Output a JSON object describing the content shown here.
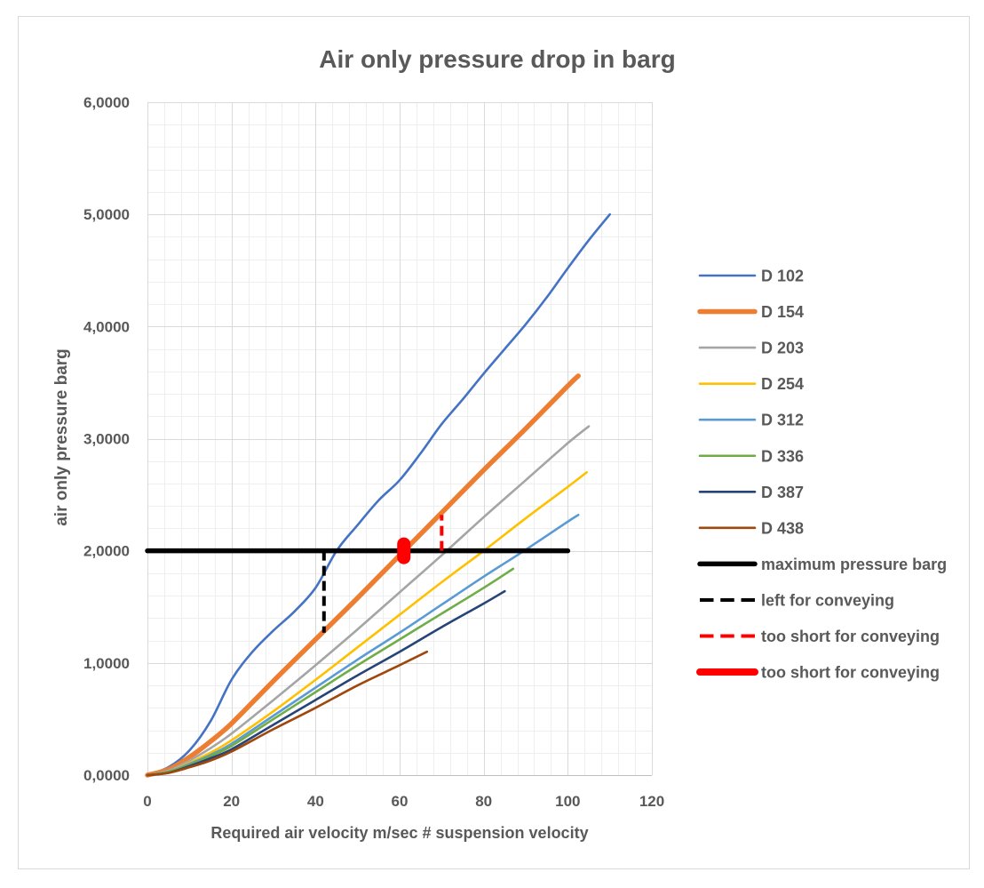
{
  "chart_data": {
    "type": "line",
    "title": "Air only pressure drop in barg",
    "xlabel": "Required air velocity m/sec # suspension velocity",
    "ylabel": "air only pressure barg",
    "xlim": [
      0,
      120
    ],
    "ylim": [
      0,
      6
    ],
    "x_ticks": [
      0,
      20,
      40,
      60,
      80,
      100,
      120
    ],
    "x_tick_labels": [
      "0",
      "20",
      "40",
      "60",
      "80",
      "100",
      "120"
    ],
    "y_ticks": [
      0,
      1,
      2,
      3,
      4,
      5,
      6
    ],
    "y_tick_labels": [
      "0,0000",
      "1,0000",
      "2,0000",
      "3,0000",
      "4,0000",
      "5,0000",
      "6,0000"
    ],
    "grid": "major and minor",
    "minor_grid": {
      "x_step": 4,
      "y_step": 0.2
    },
    "legend": "right",
    "series": [
      {
        "name": "D 102",
        "color": "#4472C4",
        "line_style": "solid",
        "x": [
          0,
          5,
          10,
          15,
          20,
          25,
          30,
          35,
          40,
          45,
          50,
          55,
          60,
          65,
          70,
          75,
          80,
          85,
          90,
          95,
          100,
          105,
          110
        ],
        "y": [
          0,
          0.07,
          0.22,
          0.48,
          0.85,
          1.1,
          1.29,
          1.46,
          1.67,
          2.0,
          2.23,
          2.45,
          2.63,
          2.87,
          3.13,
          3.35,
          3.58,
          3.8,
          4.02,
          4.26,
          4.52,
          4.77,
          5.0
        ]
      },
      {
        "name": "D 154",
        "color": "#ED7D31",
        "line_style": "thick",
        "x": [
          0,
          5,
          10,
          15,
          20,
          30,
          40,
          50,
          60,
          70,
          80,
          90,
          100,
          102.5
        ],
        "y": [
          0,
          0.05,
          0.16,
          0.3,
          0.46,
          0.84,
          1.21,
          1.58,
          1.96,
          2.34,
          2.72,
          3.09,
          3.47,
          3.56
        ]
      },
      {
        "name": "D 203",
        "color": "#A5A5A5",
        "line_style": "solid",
        "x": [
          0,
          5,
          10,
          15,
          20,
          30,
          40,
          50,
          60,
          70,
          80,
          90,
          100,
          105
        ],
        "y": [
          0,
          0.04,
          0.13,
          0.24,
          0.37,
          0.67,
          0.98,
          1.3,
          1.63,
          1.96,
          2.3,
          2.63,
          2.96,
          3.11
        ]
      },
      {
        "name": "D 254",
        "color": "#FFC000",
        "line_style": "solid",
        "x": [
          0,
          5,
          10,
          15,
          20,
          30,
          40,
          50,
          60,
          70,
          80,
          90,
          100,
          104.5
        ],
        "y": [
          0,
          0.03,
          0.11,
          0.2,
          0.31,
          0.57,
          0.85,
          1.14,
          1.43,
          1.72,
          2.0,
          2.29,
          2.57,
          2.7
        ]
      },
      {
        "name": "D 312",
        "color": "#5B9BD5",
        "line_style": "solid",
        "x": [
          0,
          5,
          10,
          15,
          20,
          30,
          40,
          50,
          60,
          70,
          80,
          90,
          100,
          102.5
        ],
        "y": [
          0,
          0.03,
          0.1,
          0.18,
          0.28,
          0.53,
          0.78,
          1.03,
          1.27,
          1.52,
          1.77,
          2.01,
          2.26,
          2.32
        ]
      },
      {
        "name": "D 336",
        "color": "#70AD47",
        "line_style": "solid",
        "x": [
          0,
          5,
          10,
          15,
          20,
          30,
          40,
          50,
          60,
          70,
          80,
          87
        ],
        "y": [
          0,
          0.03,
          0.09,
          0.17,
          0.26,
          0.5,
          0.74,
          0.98,
          1.21,
          1.44,
          1.67,
          1.84
        ]
      },
      {
        "name": "D 387",
        "color": "#264478",
        "line_style": "solid",
        "x": [
          0,
          5,
          10,
          15,
          20,
          30,
          40,
          50,
          60,
          70,
          80,
          85
        ],
        "y": [
          0,
          0.02,
          0.08,
          0.15,
          0.23,
          0.45,
          0.67,
          0.89,
          1.1,
          1.32,
          1.53,
          1.64
        ]
      },
      {
        "name": "D 438",
        "color": "#9E480E",
        "line_style": "solid",
        "x": [
          0,
          5,
          10,
          15,
          20,
          30,
          40,
          50,
          60,
          66.5
        ],
        "y": [
          0,
          0.02,
          0.07,
          0.13,
          0.21,
          0.41,
          0.6,
          0.8,
          0.98,
          1.1
        ]
      },
      {
        "name": "maximum pressure barg",
        "color": "#000000",
        "line_style": "thick",
        "x": [
          0,
          100
        ],
        "y": [
          2.0,
          2.0
        ]
      },
      {
        "name": "left for conveying",
        "color": "#000000",
        "line_style": "dashed",
        "x": [
          42,
          42
        ],
        "y": [
          2.0,
          1.27
        ]
      },
      {
        "name": "too short for conveying",
        "color": "#FF0000",
        "line_style": "dashed",
        "x": [
          70,
          70
        ],
        "y": [
          2.0,
          2.32
        ]
      },
      {
        "name": "too short for conveying",
        "color": "#FF0000",
        "line_style": "heavy",
        "x": [
          61,
          61
        ],
        "y": [
          1.94,
          2.06
        ]
      }
    ]
  }
}
